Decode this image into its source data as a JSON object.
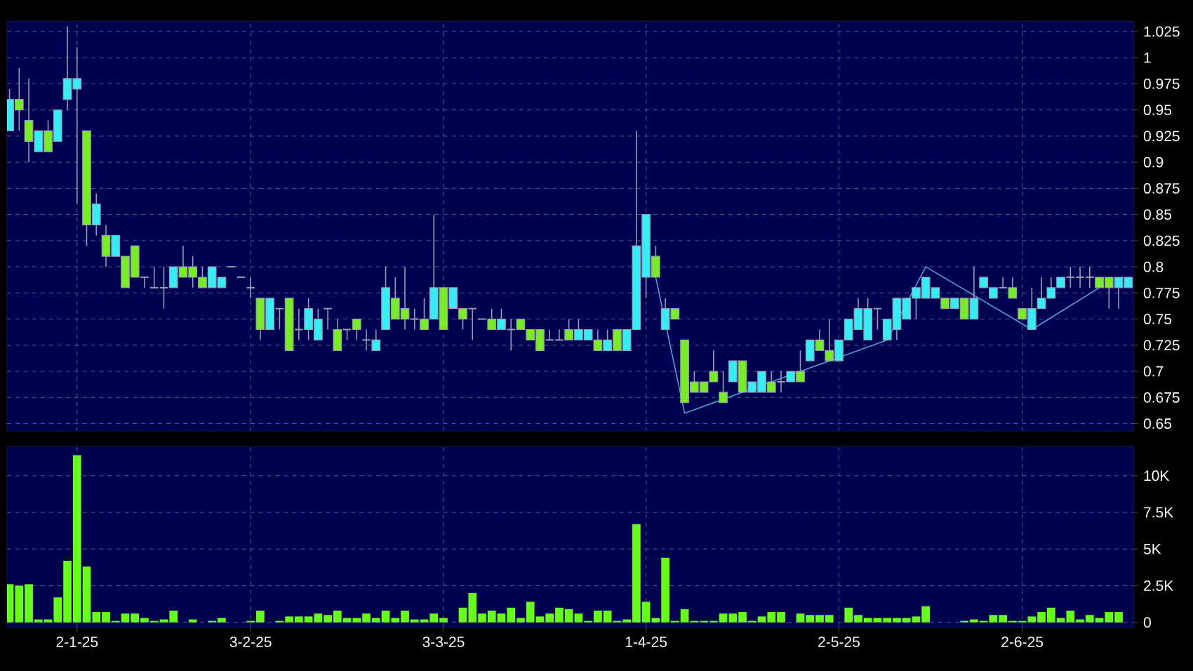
{
  "chart_data": [
    {
      "type": "candlestick",
      "categories": [
        null,
        null,
        null,
        null,
        null,
        null,
        null,
        null,
        null,
        null,
        null,
        null,
        null,
        null,
        null,
        null,
        null,
        null,
        null,
        null,
        null,
        null,
        null,
        null,
        null,
        null,
        null,
        null,
        null,
        null,
        null,
        null,
        null,
        null,
        null,
        null,
        null,
        null,
        null,
        null,
        null,
        null,
        null,
        null,
        null,
        null,
        null,
        null,
        null,
        null,
        null,
        null,
        null,
        null,
        null,
        null,
        null,
        null,
        null,
        null,
        null,
        null,
        null,
        null,
        null,
        null,
        null,
        null,
        null,
        null,
        null,
        null,
        null,
        null,
        null,
        null,
        null,
        null,
        null,
        null,
        null,
        null,
        null,
        null,
        null,
        null,
        null,
        null,
        null,
        null,
        null,
        null,
        null,
        null,
        null,
        null,
        null,
        null,
        null,
        null,
        null,
        null,
        null,
        null,
        null,
        null,
        null,
        null,
        null,
        null,
        null,
        null,
        null,
        null,
        null,
        null,
        null
      ],
      "ohlc": [
        [
          0.93,
          0.97,
          0.93,
          0.96
        ],
        [
          0.96,
          0.99,
          0.93,
          0.95
        ],
        [
          0.94,
          0.98,
          0.9,
          0.92
        ],
        [
          0.91,
          0.93,
          0.91,
          0.93
        ],
        [
          0.93,
          0.94,
          0.91,
          0.91
        ],
        [
          0.92,
          0.95,
          0.92,
          0.95
        ],
        [
          0.96,
          1.03,
          0.95,
          0.98
        ],
        [
          0.97,
          1.01,
          0.86,
          0.98
        ],
        [
          0.93,
          0.93,
          0.82,
          0.84
        ],
        [
          0.84,
          0.87,
          0.83,
          0.86
        ],
        [
          0.83,
          0.84,
          0.8,
          0.81
        ],
        [
          0.81,
          0.83,
          0.81,
          0.83
        ],
        [
          0.81,
          0.81,
          0.78,
          0.78
        ],
        [
          0.82,
          0.82,
          0.79,
          0.79
        ],
        [
          0.79,
          0.79,
          0.78,
          0.79
        ],
        [
          0.78,
          0.8,
          0.78,
          0.78
        ],
        [
          0.78,
          0.8,
          0.76,
          0.78
        ],
        [
          0.78,
          0.8,
          0.78,
          0.8
        ],
        [
          0.8,
          0.82,
          0.79,
          0.79
        ],
        [
          0.8,
          0.81,
          0.78,
          0.79
        ],
        [
          0.79,
          0.8,
          0.78,
          0.78
        ],
        [
          0.78,
          0.8,
          0.78,
          0.8
        ],
        [
          0.78,
          0.79,
          0.78,
          0.79
        ],
        [
          0.8,
          0.8,
          0.8,
          0.8
        ],
        [
          0.79,
          0.79,
          0.79,
          0.79
        ],
        [
          0.78,
          0.79,
          0.77,
          0.78
        ],
        [
          0.77,
          0.77,
          0.73,
          0.74
        ],
        [
          0.74,
          0.77,
          0.74,
          0.77
        ],
        [
          0.76,
          0.76,
          0.74,
          0.76
        ],
        [
          0.77,
          0.77,
          0.72,
          0.72
        ],
        [
          0.74,
          0.76,
          0.73,
          0.74
        ],
        [
          0.74,
          0.77,
          0.73,
          0.76
        ],
        [
          0.73,
          0.76,
          0.73,
          0.75
        ],
        [
          0.76,
          0.76,
          0.74,
          0.76
        ],
        [
          0.74,
          0.75,
          0.72,
          0.72
        ],
        [
          0.74,
          0.74,
          0.73,
          0.74
        ],
        [
          0.75,
          0.75,
          0.73,
          0.74
        ],
        [
          0.73,
          0.74,
          0.72,
          0.73
        ],
        [
          0.72,
          0.74,
          0.72,
          0.73
        ],
        [
          0.74,
          0.8,
          0.74,
          0.78
        ],
        [
          0.77,
          0.79,
          0.75,
          0.75
        ],
        [
          0.76,
          0.8,
          0.74,
          0.75
        ],
        [
          0.75,
          0.76,
          0.74,
          0.75
        ],
        [
          0.75,
          0.77,
          0.74,
          0.74
        ],
        [
          0.75,
          0.85,
          0.75,
          0.78
        ],
        [
          0.78,
          0.78,
          0.74,
          0.74
        ],
        [
          0.76,
          0.78,
          0.76,
          0.78
        ],
        [
          0.76,
          0.76,
          0.74,
          0.75
        ],
        [
          0.76,
          0.76,
          0.73,
          0.76
        ],
        [
          0.75,
          0.75,
          0.75,
          0.75
        ],
        [
          0.75,
          0.76,
          0.74,
          0.74
        ],
        [
          0.74,
          0.76,
          0.74,
          0.75
        ],
        [
          0.74,
          0.75,
          0.72,
          0.74
        ],
        [
          0.75,
          0.75,
          0.74,
          0.74
        ],
        [
          0.74,
          0.74,
          0.73,
          0.73
        ],
        [
          0.74,
          0.74,
          0.72,
          0.72
        ],
        [
          0.73,
          0.74,
          0.73,
          0.73
        ],
        [
          0.73,
          0.74,
          0.73,
          0.73
        ],
        [
          0.74,
          0.75,
          0.73,
          0.73
        ],
        [
          0.73,
          0.75,
          0.73,
          0.74
        ],
        [
          0.73,
          0.74,
          0.73,
          0.74
        ],
        [
          0.73,
          0.74,
          0.72,
          0.72
        ],
        [
          0.72,
          0.74,
          0.72,
          0.73
        ],
        [
          0.74,
          0.74,
          0.72,
          0.72
        ],
        [
          0.72,
          0.74,
          0.72,
          0.74
        ],
        [
          0.74,
          0.93,
          0.74,
          0.82
        ],
        [
          0.79,
          0.85,
          0.77,
          0.85
        ],
        [
          0.81,
          0.82,
          0.79,
          0.79
        ],
        [
          0.74,
          0.77,
          0.74,
          0.76
        ],
        [
          0.76,
          0.76,
          0.75,
          0.75
        ],
        [
          0.73,
          0.73,
          0.67,
          0.67
        ],
        [
          0.69,
          0.7,
          0.68,
          0.68
        ],
        [
          0.69,
          0.69,
          0.68,
          0.68
        ],
        [
          0.7,
          0.72,
          0.69,
          0.69
        ],
        [
          0.68,
          0.7,
          0.67,
          0.67
        ],
        [
          0.69,
          0.71,
          0.69,
          0.71
        ],
        [
          0.71,
          0.71,
          0.68,
          0.68
        ],
        [
          0.68,
          0.69,
          0.68,
          0.69
        ],
        [
          0.68,
          0.7,
          0.68,
          0.7
        ],
        [
          0.69,
          0.7,
          0.68,
          0.68
        ],
        [
          0.69,
          0.7,
          0.68,
          0.69
        ],
        [
          0.69,
          0.7,
          0.69,
          0.7
        ],
        [
          0.7,
          0.72,
          0.69,
          0.69
        ],
        [
          0.71,
          0.73,
          0.71,
          0.73
        ],
        [
          0.73,
          0.74,
          0.72,
          0.72
        ],
        [
          0.72,
          0.75,
          0.71,
          0.71
        ],
        [
          0.71,
          0.73,
          0.71,
          0.73
        ],
        [
          0.73,
          0.75,
          0.73,
          0.75
        ],
        [
          0.74,
          0.77,
          0.74,
          0.76
        ],
        [
          0.73,
          0.77,
          0.73,
          0.76
        ],
        [
          0.76,
          0.76,
          0.74,
          0.76
        ],
        [
          0.73,
          0.75,
          0.73,
          0.75
        ],
        [
          0.74,
          0.77,
          0.73,
          0.77
        ],
        [
          0.75,
          0.77,
          0.75,
          0.77
        ],
        [
          0.77,
          0.78,
          0.75,
          0.78
        ],
        [
          0.77,
          0.79,
          0.77,
          0.79
        ],
        [
          0.77,
          0.78,
          0.77,
          0.78
        ],
        [
          0.77,
          0.77,
          0.76,
          0.76
        ],
        [
          0.76,
          0.77,
          0.76,
          0.77
        ],
        [
          0.77,
          0.77,
          0.75,
          0.75
        ],
        [
          0.75,
          0.8,
          0.75,
          0.77
        ],
        [
          0.78,
          0.79,
          0.78,
          0.79
        ],
        [
          0.77,
          0.78,
          0.77,
          0.78
        ],
        [
          0.78,
          0.79,
          0.78,
          0.78
        ],
        [
          0.78,
          0.79,
          0.77,
          0.77
        ],
        [
          0.76,
          0.76,
          0.75,
          0.75
        ],
        [
          0.74,
          0.78,
          0.74,
          0.76
        ],
        [
          0.76,
          0.79,
          0.76,
          0.77
        ],
        [
          0.77,
          0.79,
          0.77,
          0.78
        ],
        [
          0.78,
          0.79,
          0.78,
          0.79
        ],
        [
          0.79,
          0.8,
          0.78,
          0.79
        ],
        [
          0.79,
          0.8,
          0.78,
          0.79
        ],
        [
          0.79,
          0.8,
          0.78,
          0.79
        ],
        [
          0.79,
          0.79,
          0.78,
          0.78
        ],
        [
          0.79,
          0.79,
          0.76,
          0.78
        ],
        [
          0.78,
          0.79,
          0.76,
          0.79
        ],
        [
          0.78,
          0.79,
          0.78,
          0.79
        ]
      ],
      "colors": [
        "#33eef5",
        "#77ee22",
        "#77ee22",
        "#33eef5",
        "#77ee22",
        "#33eef5",
        "#33eef5",
        "#33eef5",
        "#77ee22",
        "#33eef5",
        "#77ee22",
        "#33eef5",
        "#77ee22",
        "#77ee22",
        "#9a9ab4",
        "#9a9ab4",
        "#9a9ab4",
        "#33eef5",
        "#77ee22",
        "#77ee22",
        "#77ee22",
        "#33eef5",
        "#33eef5",
        "#9a9ab4",
        "#9a9ab4",
        "#9a9ab4",
        "#77ee22",
        "#33eef5",
        "#9a9ab4",
        "#77ee22",
        "#9a9ab4",
        "#33eef5",
        "#33eef5",
        "#9a9ab4",
        "#77ee22",
        "#9a9ab4",
        "#77ee22",
        "#9a9ab4",
        "#33eef5",
        "#33eef5",
        "#77ee22",
        "#77ee22",
        "#9a9ab4",
        "#77ee22",
        "#33eef5",
        "#77ee22",
        "#33eef5",
        "#77ee22",
        "#9a9ab4",
        "#9a9ab4",
        "#77ee22",
        "#33eef5",
        "#9a9ab4",
        "#77ee22",
        "#77ee22",
        "#77ee22",
        "#9a9ab4",
        "#9a9ab4",
        "#77ee22",
        "#33eef5",
        "#33eef5",
        "#77ee22",
        "#33eef5",
        "#77ee22",
        "#33eef5",
        "#33eef5",
        "#33eef5",
        "#77ee22",
        "#33eef5",
        "#77ee22",
        "#77ee22",
        "#77ee22",
        "#77ee22",
        "#77ee22",
        "#77ee22",
        "#33eef5",
        "#77ee22",
        "#33eef5",
        "#33eef5",
        "#77ee22",
        "#9a9ab4",
        "#33eef5",
        "#77ee22",
        "#33eef5",
        "#77ee22",
        "#77ee22",
        "#33eef5",
        "#33eef5",
        "#33eef5",
        "#33eef5",
        "#9a9ab4",
        "#33eef5",
        "#33eef5",
        "#33eef5",
        "#33eef5",
        "#33eef5",
        "#33eef5",
        "#77ee22",
        "#33eef5",
        "#77ee22",
        "#33eef5",
        "#33eef5",
        "#33eef5",
        "#9a9ab4",
        "#77ee22",
        "#77ee22",
        "#33eef5",
        "#33eef5",
        "#33eef5",
        "#33eef5",
        "#9a9ab4",
        "#9a9ab4",
        "#9a9ab4",
        "#77ee22",
        "#77ee22",
        "#33eef5",
        "#33eef5"
      ],
      "series": [
        {
          "type": "line",
          "color": "#4a9fe0",
          "values": [
            null,
            null,
            null,
            null,
            null,
            null,
            null,
            null,
            null,
            null,
            null,
            null,
            null,
            null,
            null,
            null,
            null,
            null,
            null,
            null,
            null,
            null,
            null,
            null,
            null,
            null,
            null,
            null,
            null,
            null,
            null,
            null,
            null,
            null,
            null,
            null,
            null,
            null,
            null,
            null,
            null,
            null,
            null,
            null,
            null,
            null,
            null,
            null,
            null,
            null,
            null,
            null,
            null,
            null,
            null,
            null,
            null,
            null,
            null,
            null,
            null,
            null,
            null,
            null,
            null,
            null,
            null,
            0.79,
            null,
            null,
            0.66,
            null,
            null,
            null,
            null,
            null,
            null,
            null,
            null,
            null,
            null,
            null,
            null,
            null,
            null,
            null,
            null,
            null,
            null,
            null,
            null,
            0.73,
            null,
            null,
            null,
            0.8,
            null,
            null,
            null,
            null,
            null,
            null,
            null,
            null,
            null,
            null,
            0.74,
            null,
            null,
            null,
            null,
            null,
            null,
            0.78,
            null,
            null,
            null
          ]
        }
      ],
      "ylim": [
        0.643,
        1.035
      ],
      "yticks": [
        0.65,
        0.675,
        0.7,
        0.725,
        0.75,
        0.775,
        0.8,
        0.825,
        0.85,
        0.875,
        0.9,
        0.925,
        0.95,
        0.975,
        1,
        1.025
      ],
      "grid": true
    },
    {
      "type": "bar",
      "categories": [
        null,
        null,
        null,
        null,
        null,
        null,
        null,
        "2-1-25",
        null,
        null,
        null,
        null,
        null,
        null,
        null,
        null,
        null,
        null,
        null,
        null,
        null,
        null,
        null,
        null,
        null,
        "3-2-25",
        null,
        null,
        null,
        null,
        null,
        null,
        null,
        null,
        null,
        null,
        null,
        null,
        null,
        null,
        null,
        null,
        null,
        null,
        null,
        "3-3-25",
        null,
        null,
        null,
        null,
        null,
        null,
        null,
        null,
        null,
        null,
        null,
        null,
        null,
        null,
        null,
        null,
        null,
        null,
        null,
        null,
        "1-4-25",
        null,
        null,
        null,
        null,
        null,
        null,
        null,
        null,
        null,
        null,
        null,
        null,
        null,
        null,
        null,
        null,
        null,
        null,
        null,
        "2-5-25",
        null,
        null,
        null,
        null,
        null,
        null,
        null,
        null,
        null,
        null,
        null,
        null,
        null,
        null,
        null,
        null,
        null,
        null,
        "2-6-25",
        null,
        null,
        null,
        null,
        null,
        null,
        null,
        null,
        null,
        null,
        null
      ],
      "values": [
        2600,
        2500,
        2600,
        200,
        200,
        1700,
        4200,
        11400,
        3800,
        700,
        700,
        100,
        600,
        600,
        300,
        100,
        200,
        800,
        null,
        200,
        0,
        100,
        300,
        0,
        null,
        100,
        800,
        null,
        100,
        400,
        400,
        400,
        600,
        500,
        800,
        300,
        300,
        600,
        300,
        800,
        300,
        800,
        200,
        200,
        600,
        300,
        null,
        1000,
        2000,
        600,
        800,
        600,
        1000,
        300,
        1400,
        400,
        600,
        1000,
        900,
        600,
        100,
        800,
        800,
        100,
        200,
        6700,
        1400,
        300,
        4400,
        100,
        900,
        100,
        100,
        100,
        600,
        600,
        700,
        100,
        400,
        700,
        700,
        null,
        600,
        500,
        500,
        500,
        null,
        1000,
        500,
        300,
        300,
        300,
        300,
        300,
        400,
        1100,
        null,
        0,
        0,
        100,
        200,
        100,
        500,
        500,
        100,
        100,
        400,
        700,
        1000,
        300,
        800,
        200,
        500,
        300,
        700,
        700,
        null
      ],
      "color": "#66ff1a",
      "ylim": [
        -350,
        12000
      ],
      "yticks": [
        0,
        {
          "value": 2500,
          "label": "2.5K"
        },
        {
          "value": 5000,
          "label": "5K"
        },
        {
          "value": 7500,
          "label": "7.5K"
        },
        {
          "value": 10000,
          "label": "10K"
        }
      ],
      "grid": true
    }
  ]
}
